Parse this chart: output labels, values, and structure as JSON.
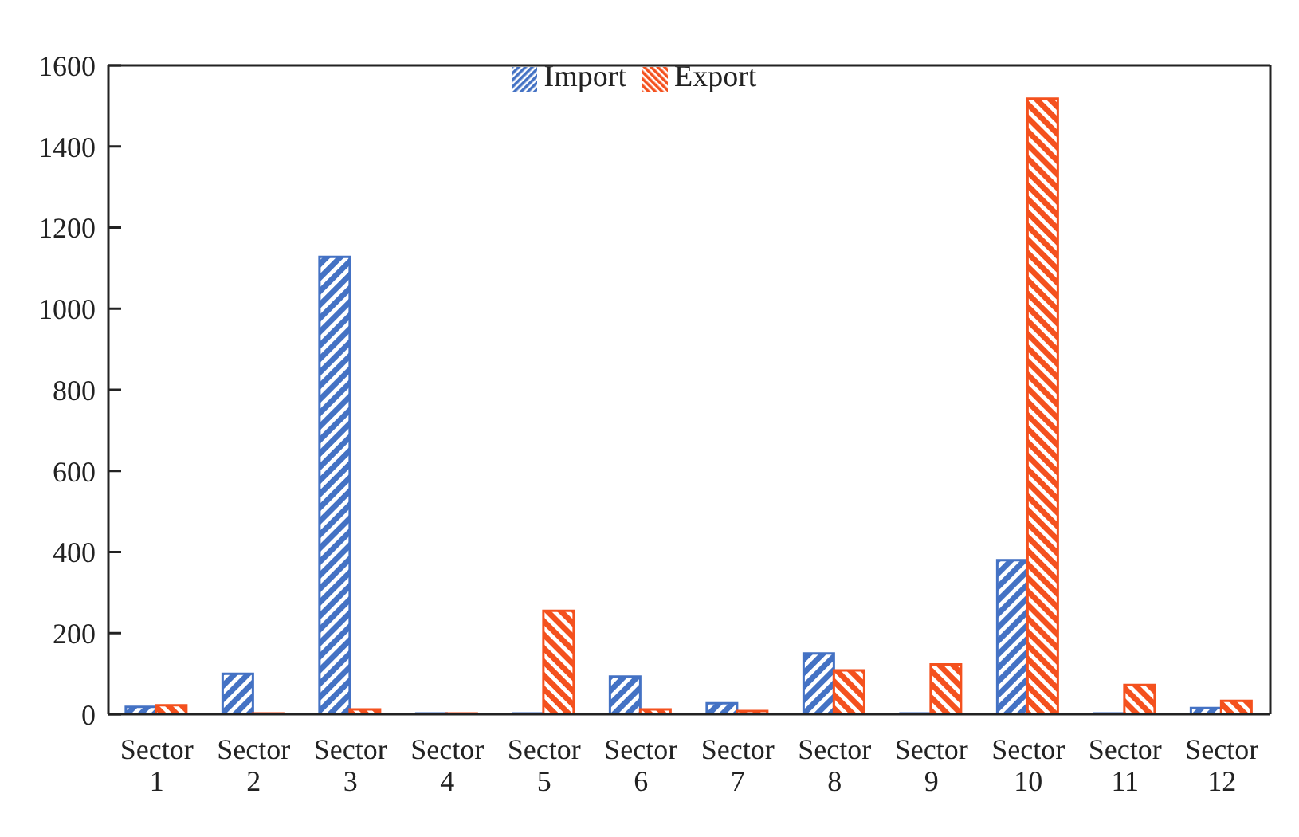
{
  "chart_data": {
    "type": "bar",
    "categories": [
      "Sector 1",
      "Sector 2",
      "Sector 3",
      "Sector 4",
      "Sector 5",
      "Sector 6",
      "Sector 7",
      "Sector 8",
      "Sector 9",
      "Sector 10",
      "Sector 11",
      "Sector 12"
    ],
    "series": [
      {
        "name": "Import",
        "color": "#4472c4",
        "values": [
          18,
          100,
          1128,
          2,
          2,
          93,
          27,
          150,
          2,
          380,
          2,
          15
        ]
      },
      {
        "name": "Export",
        "color": "#f4511e",
        "values": [
          22,
          2,
          12,
          2,
          255,
          12,
          8,
          108,
          123,
          1518,
          72,
          33
        ]
      }
    ],
    "ylim": [
      0,
      1600
    ],
    "yticks": [
      0,
      200,
      400,
      600,
      800,
      1000,
      1200,
      1400,
      1600
    ],
    "grid": false,
    "legend": "top"
  }
}
